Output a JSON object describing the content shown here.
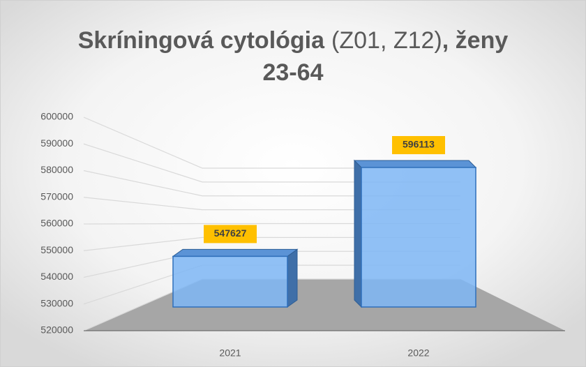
{
  "chart_data": {
    "type": "bar3d",
    "title": [
      "Skríningová cytológia",
      "(Z01, Z12)",
      ", ženy",
      "23-64"
    ],
    "categories": [
      "2021",
      "2022"
    ],
    "values": [
      547627,
      596113
    ],
    "color": "#7eb6f5",
    "label_color": "#ffc000",
    "ylim": [
      520000,
      600000
    ],
    "yticks": [
      520000,
      530000,
      540000,
      550000,
      560000,
      570000,
      580000,
      590000,
      600000
    ],
    "grid": true
  }
}
